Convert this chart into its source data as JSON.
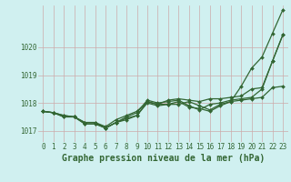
{
  "xlabel": "Graphe pression niveau de la mer (hPa)",
  "hours": [
    0,
    1,
    2,
    3,
    4,
    5,
    6,
    7,
    8,
    9,
    10,
    11,
    12,
    13,
    14,
    15,
    16,
    17,
    18,
    19,
    20,
    21,
    22,
    23
  ],
  "line1": [
    1017.7,
    1017.65,
    1017.55,
    1017.5,
    1017.3,
    1017.3,
    1017.1,
    1017.3,
    1017.45,
    1017.55,
    1018.05,
    1017.95,
    1017.95,
    1017.95,
    1018.05,
    1017.9,
    1017.75,
    1017.95,
    1018.05,
    1018.1,
    1018.15,
    1018.2,
    1018.55,
    1018.6
  ],
  "line2": [
    1017.7,
    1017.65,
    1017.55,
    1017.5,
    1017.3,
    1017.3,
    1017.15,
    1017.4,
    1017.55,
    1017.7,
    1018.05,
    1017.95,
    1018.1,
    1018.15,
    1018.1,
    1018.05,
    1018.15,
    1018.15,
    1018.2,
    1018.25,
    1018.5,
    1018.55,
    1019.5,
    1020.45
  ],
  "line3": [
    1017.7,
    1017.65,
    1017.5,
    1017.5,
    1017.25,
    1017.25,
    1017.1,
    1017.3,
    1017.4,
    1017.55,
    1018.0,
    1017.9,
    1017.95,
    1018.05,
    1017.85,
    1017.8,
    1017.7,
    1017.9,
    1018.05,
    1018.6,
    1019.25,
    1019.65,
    1020.5,
    1021.35
  ],
  "line4": [
    1017.7,
    1017.65,
    1017.5,
    1017.5,
    1017.25,
    1017.25,
    1017.1,
    1017.3,
    1017.5,
    1017.65,
    1018.1,
    1018.0,
    1018.05,
    1018.1,
    1017.9,
    1017.75,
    1017.95,
    1018.0,
    1018.1,
    1018.15,
    1018.2,
    1018.5,
    1019.5,
    1020.45
  ],
  "bg_color": "#d0f0f0",
  "line_color": "#336633",
  "grid_color_v": "#ccaaaa",
  "grid_color_h": "#ccaaaa",
  "ylim": [
    1016.6,
    1021.5
  ],
  "yticks": [
    1017,
    1018,
    1019,
    1020
  ],
  "tick_label_fontsize": 5.5,
  "xlabel_fontsize": 7.0
}
